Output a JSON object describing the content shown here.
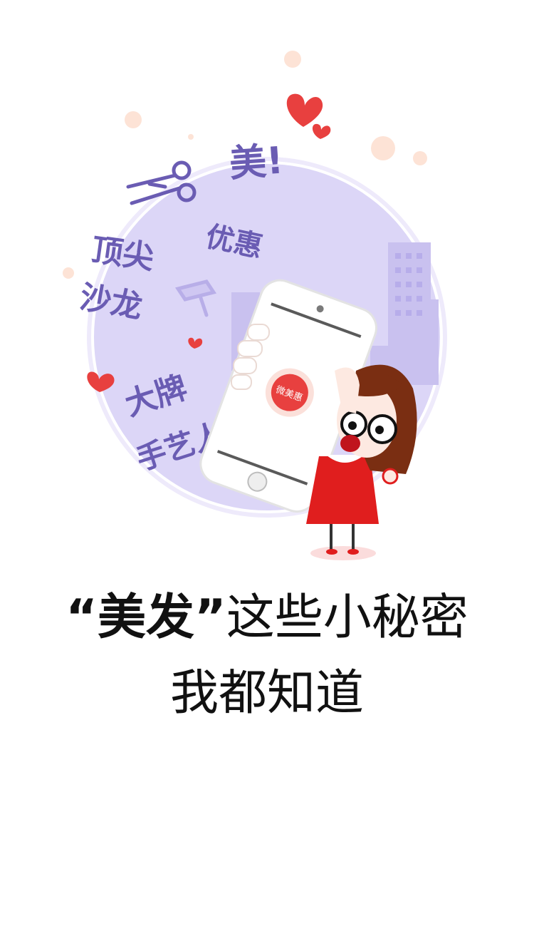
{
  "illustration": {
    "words": {
      "mei": "美!",
      "youhui": "优惠",
      "dingjian": "顶尖",
      "shalong": "沙龙",
      "dapai": "大牌",
      "shouyiren": "手艺人"
    },
    "app_logo_text": "微美惠",
    "colors": {
      "circle": "#dcd6f7",
      "word": "#6a5cb3",
      "heart": "#e8403f",
      "dress": "#e01e1e",
      "hair": "#7a2e12",
      "dot": "#fde3d6"
    }
  },
  "headline": {
    "quote_open": "“",
    "emphasis": "美发",
    "quote_close": "”",
    "rest": "这些小秘密",
    "line2": "我都知道"
  }
}
